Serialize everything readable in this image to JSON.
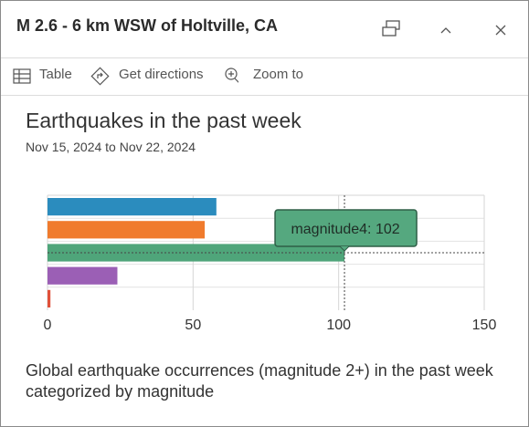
{
  "header": {
    "title": "M 2.6 - 6 km WSW of Holtville, CA"
  },
  "actions": [
    "Table",
    "Get directions",
    "Zoom to"
  ],
  "chart_data": {
    "type": "bar",
    "orientation": "horizontal",
    "title": "Earthquakes in the past week",
    "subtitle": "Nov 15, 2024 to Nov 22, 2024",
    "categories": [
      null,
      null,
      null,
      null,
      null
    ],
    "values": [
      58,
      54,
      102,
      24,
      1
    ],
    "colors": [
      "#2b8cbe",
      "#f07b2d",
      "#4fa57a",
      "#9b5fb5",
      "#e0513a"
    ],
    "value_labels": [
      null,
      null,
      "magnitude4: 102",
      null,
      null
    ],
    "xlim": [
      0,
      150
    ],
    "xticks": [
      0,
      50,
      100,
      150
    ],
    "grid": true
  },
  "description": "Global earthquake occurrences (magnitude 2+) in the past week categorized by magnitude"
}
